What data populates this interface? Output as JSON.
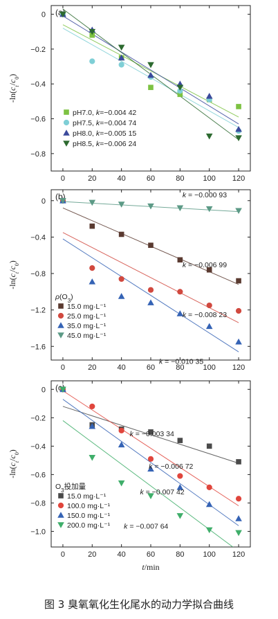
{
  "caption": "图 3 臭氧氧化生化尾水的动力学拟合曲线",
  "xlabel": "t/min",
  "ylabel": "-ln(ct/c0)",
  "chart_data": [
    {
      "type": "scatter",
      "tag": "(a)",
      "xticks": [
        0,
        20,
        40,
        60,
        80,
        100,
        120
      ],
      "yticks": [
        0,
        -0.2,
        -0.4,
        -0.6,
        -0.8
      ],
      "ytick_labels": [
        "0",
        "−0.2",
        "−0.4",
        "−0.6",
        "−0.8"
      ],
      "xlim": [
        -8,
        128
      ],
      "ylim": [
        -0.9,
        0.05
      ],
      "legend_title": "",
      "legend_placement": "bottom-left",
      "series": [
        {
          "name": "pH7.0, k=−0.004 42",
          "marker": "square",
          "color": "#7dc242",
          "x": [
            0,
            20,
            40,
            60,
            80,
            100,
            120
          ],
          "y": [
            0,
            -0.12,
            -0.25,
            -0.42,
            -0.46,
            -0.49,
            -0.53
          ],
          "fit": [
            [
              0,
              -0.06
            ],
            [
              120,
              -0.59
            ]
          ]
        },
        {
          "name": "pH7.5, k=−0.004 74",
          "marker": "circle",
          "color": "#7fcfd6",
          "x": [
            0,
            20,
            40,
            60,
            80,
            100,
            120
          ],
          "y": [
            0,
            -0.27,
            -0.29,
            -0.36,
            -0.44,
            -0.49,
            -0.67
          ],
          "fit": [
            [
              0,
              -0.08
            ],
            [
              120,
              -0.65
            ]
          ]
        },
        {
          "name": "pH8.0, k=−0.005 15",
          "marker": "triangle-up",
          "color": "#3b4a9c",
          "x": [
            0,
            20,
            40,
            60,
            80,
            100,
            120
          ],
          "y": [
            0,
            -0.09,
            -0.25,
            -0.35,
            -0.4,
            -0.47,
            -0.66
          ],
          "fit": [
            [
              0,
              -0.01
            ],
            [
              120,
              -0.63
            ]
          ]
        },
        {
          "name": "pH8.5, k=−0.006 24",
          "marker": "triangle-down",
          "color": "#2d6a30",
          "x": [
            0,
            20,
            40,
            60,
            80,
            100,
            120
          ],
          "y": [
            0,
            -0.1,
            -0.19,
            -0.29,
            -0.42,
            -0.7,
            -0.71
          ],
          "fit": [
            [
              0,
              0.03
            ],
            [
              120,
              -0.72
            ]
          ]
        }
      ],
      "annotations": []
    },
    {
      "type": "scatter",
      "tag": "(b)",
      "xticks": [
        0,
        20,
        40,
        60,
        80,
        100,
        120
      ],
      "yticks": [
        0,
        -0.4,
        -0.8,
        -1.2,
        -1.6
      ],
      "ytick_labels": [
        "0",
        "−0.4",
        "−0.8",
        "−1.2",
        "−1.6"
      ],
      "xlim": [
        -8,
        128
      ],
      "ylim": [
        -1.75,
        0.12
      ],
      "legend_title": "ρ(O3)",
      "legend_placement": "bottom-left",
      "series": [
        {
          "name": "15.0 mg·L⁻¹",
          "marker": "square",
          "color": "#5a3a30",
          "x": [
            0,
            20,
            40,
            60,
            80,
            100,
            120
          ],
          "y": [
            0,
            -0.28,
            -0.37,
            -0.49,
            -0.65,
            -0.76,
            -0.88
          ],
          "fit": [
            [
              0,
              -0.08
            ],
            [
              120,
              -0.92
            ]
          ]
        },
        {
          "name": "25.0 mg·L⁻¹",
          "marker": "circle",
          "color": "#d1493f",
          "x": [
            0,
            20,
            40,
            60,
            80,
            100,
            120
          ],
          "y": [
            0,
            -0.74,
            -0.86,
            -0.98,
            -1.0,
            -1.15,
            -1.21
          ],
          "fit": [
            [
              0,
              -0.35
            ],
            [
              120,
              -1.34
            ]
          ]
        },
        {
          "name": "35.0 mg·L⁻¹",
          "marker": "triangle-up",
          "color": "#3563b5",
          "x": [
            0,
            20,
            40,
            60,
            80,
            100,
            120
          ],
          "y": [
            0,
            -0.89,
            -1.05,
            -1.12,
            -1.24,
            -1.38,
            -1.55
          ],
          "fit": [
            [
              0,
              -0.42
            ],
            [
              120,
              -1.66
            ]
          ]
        },
        {
          "name": "45.0 mg·L⁻¹",
          "marker": "triangle-down",
          "color": "#5c9a86",
          "x": [
            0,
            20,
            40,
            60,
            80,
            100,
            120
          ],
          "y": [
            0,
            -0.02,
            -0.04,
            -0.06,
            -0.08,
            -0.09,
            -0.11
          ],
          "fit": [
            [
              0,
              -0.01
            ],
            [
              120,
              -0.12
            ]
          ]
        }
      ],
      "annotations": [
        {
          "text": "k = −0.000 93",
          "x": 112,
          "y": 0.035
        },
        {
          "text": "k = −0.006 99",
          "x": 112,
          "y": -0.73
        },
        {
          "text": "k = −0.008 23",
          "x": 112,
          "y": -1.28
        },
        {
          "text": "k = −0.010 35",
          "x": 96,
          "y": -1.79
        }
      ]
    },
    {
      "type": "scatter",
      "tag": "(c)",
      "xticks": [
        0,
        20,
        40,
        60,
        80,
        100,
        120
      ],
      "yticks": [
        0,
        -0.2,
        -0.4,
        -0.6,
        -0.8,
        -1.0
      ],
      "ytick_labels": [
        "0",
        "−0.2",
        "−0.4",
        "−0.6",
        "−0.8",
        "−1.0"
      ],
      "xlim": [
        -8,
        128
      ],
      "ylim": [
        -1.11,
        0.06
      ],
      "legend_title": "O3投加量",
      "legend_placement": "bottom-left",
      "series": [
        {
          "name": "15.0 mg·L⁻¹",
          "marker": "square",
          "color": "#4a4a4a",
          "x": [
            0,
            20,
            40,
            60,
            80,
            100,
            120
          ],
          "y": [
            0,
            -0.25,
            -0.28,
            -0.3,
            -0.36,
            -0.4,
            -0.51
          ],
          "fit": [
            [
              0,
              -0.12
            ],
            [
              120,
              -0.52
            ]
          ]
        },
        {
          "name": "100.0 mg·L⁻¹",
          "marker": "circle",
          "color": "#e0453c",
          "x": [
            0,
            20,
            40,
            60,
            80,
            100,
            120
          ],
          "y": [
            0,
            -0.12,
            -0.29,
            -0.49,
            -0.61,
            -0.69,
            -0.77
          ],
          "fit": [
            [
              0,
              -0.01
            ],
            [
              120,
              -0.82
            ]
          ]
        },
        {
          "name": "150.0 mg·L⁻¹",
          "marker": "triangle-up",
          "color": "#3563b5",
          "x": [
            0,
            20,
            40,
            60,
            80,
            100,
            120
          ],
          "y": [
            0,
            -0.26,
            -0.39,
            -0.56,
            -0.69,
            -0.81,
            -0.91
          ],
          "fit": [
            [
              0,
              -0.07
            ],
            [
              120,
              -0.96
            ]
          ]
        },
        {
          "name": "200.0 mg·L⁻¹",
          "marker": "triangle-down",
          "color": "#3fae6a",
          "x": [
            0,
            20,
            40,
            60,
            80,
            100,
            120
          ],
          "y": [
            0,
            -0.48,
            -0.66,
            -0.75,
            -0.89,
            -0.99,
            -1.01
          ],
          "fit": [
            [
              0,
              -0.22
            ],
            [
              120,
              -1.14
            ]
          ]
        }
      ],
      "annotations": [
        {
          "text": "k = −0.003 34",
          "x": 76,
          "y": -0.33
        },
        {
          "text": "k = −0.006 72",
          "x": 89,
          "y": -0.56
        },
        {
          "text": "k = −0.007 42",
          "x": 83,
          "y": -0.74
        },
        {
          "text": "k = −0.007 64",
          "x": 72,
          "y": -0.98
        }
      ]
    }
  ]
}
